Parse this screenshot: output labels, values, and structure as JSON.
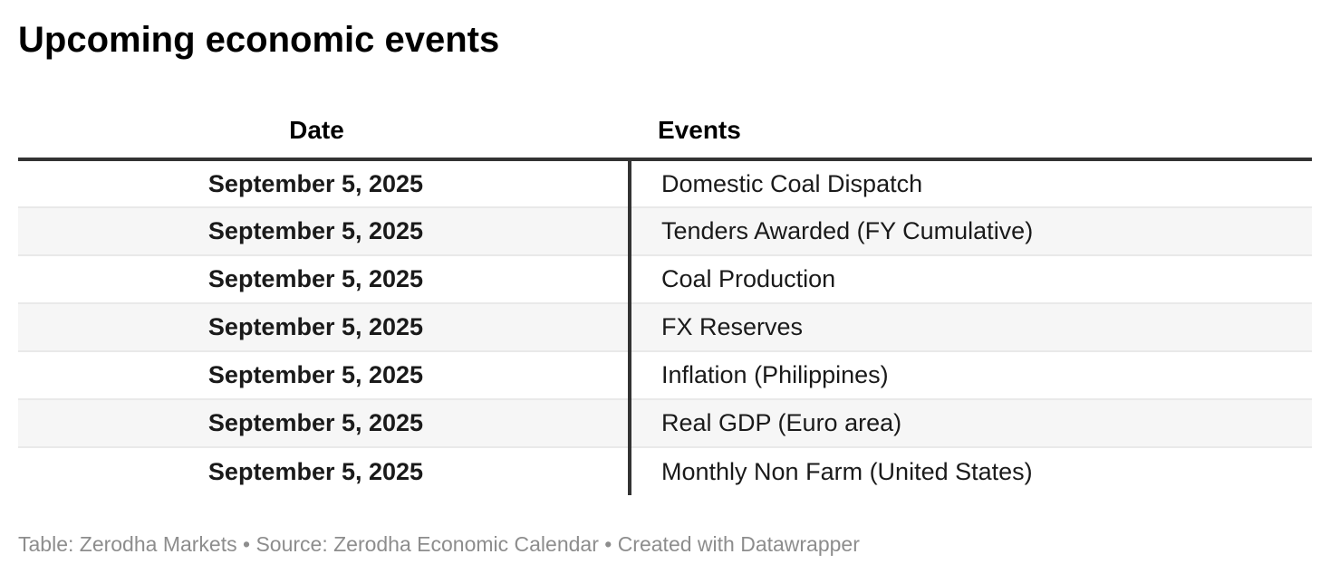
{
  "header": {
    "title": "Upcoming economic events"
  },
  "table": {
    "columns": [
      {
        "label": "Date",
        "align": "center"
      },
      {
        "label": "Events",
        "align": "left"
      }
    ],
    "rows": [
      {
        "date": "September 5, 2025",
        "event": "Domestic Coal Dispatch"
      },
      {
        "date": "September 5, 2025",
        "event": "Tenders Awarded (FY Cumulative)"
      },
      {
        "date": "September 5, 2025",
        "event": "Coal Production"
      },
      {
        "date": "September 5, 2025",
        "event": "FX Reserves"
      },
      {
        "date": "September 5, 2025",
        "event": "Inflation (Philippines)"
      },
      {
        "date": "September 5, 2025",
        "event": "Real GDP (Euro area)"
      },
      {
        "date": "September 5, 2025",
        "event": "Monthly Non Farm (United States)"
      }
    ]
  },
  "footer": {
    "text": "Table: Zerodha Markets • Source: Zerodha Economic Calendar • Created with Datawrapper"
  },
  "colors": {
    "title-text": "#000000",
    "body-text": "#1a1a1a",
    "header-rule": "#333333",
    "column-divider": "#333333",
    "stripe": "#f6f6f6",
    "row-border": "#e9e9e9",
    "footer-text": "#8d8d8d",
    "page-bg": "#ffffff"
  },
  "chart_data": {
    "type": "table",
    "title": "Upcoming economic events",
    "columns": [
      "Date",
      "Events"
    ],
    "rows": [
      [
        "September 5, 2025",
        "Domestic Coal Dispatch"
      ],
      [
        "September 5, 2025",
        "Tenders Awarded (FY Cumulative)"
      ],
      [
        "September 5, 2025",
        "Coal Production"
      ],
      [
        "September 5, 2025",
        "FX Reserves"
      ],
      [
        "September 5, 2025",
        "Inflation (Philippines)"
      ],
      [
        "September 5, 2025",
        "Real GDP (Euro area)"
      ],
      [
        "September 5, 2025",
        "Monthly Non Farm (United States)"
      ]
    ],
    "footer": "Table: Zerodha Markets • Source: Zerodha Economic Calendar • Created with Datawrapper",
    "layout": {
      "date_column_align": "center",
      "date_column_bold": true,
      "events_column_align": "left",
      "zebra_striping": true,
      "header_rule": true,
      "column_divider": true
    }
  }
}
